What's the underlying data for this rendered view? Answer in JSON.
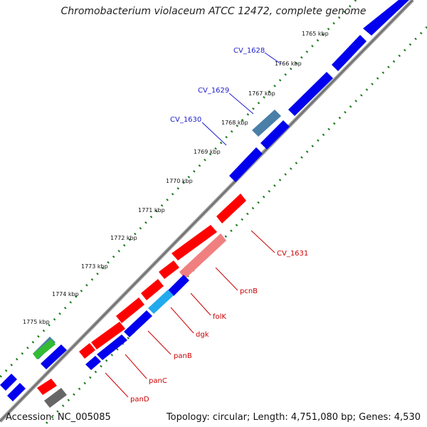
{
  "title": "Chromobacterium violaceum ATCC 12472, complete genome",
  "accession": "Accession: NC_005085",
  "topology": "Topology: circular; Length: 4,751,080 bp; Genes: 4,530",
  "colors": {
    "forward_gene": "#ff0000",
    "forward_gene_light": "#f08080",
    "reverse_gene": "#0000ee",
    "reverse_gene_alt": "#4a7fa8",
    "cyan_gene": "#22aaee",
    "green_gene": "#33bb33",
    "gray_gene": "#666666",
    "backbone": "#888888",
    "ticks": "#1a7a1a",
    "blue_label": "#2020cc",
    "red_label": "#cc0000"
  },
  "scale_labels": [
    "1765 kbp",
    "1766 kbp",
    "1767 kbp",
    "1768 kbp",
    "1769 kbp",
    "1770 kbp",
    "1771 kbp",
    "1772 kbp",
    "1773 kbp",
    "1774 kbp",
    "1775 kbp"
  ],
  "gene_labels": {
    "reverse": [
      "CV_1628",
      "CV_1629",
      "CV_1630"
    ],
    "forward": [
      "CV_1631",
      "pcnB",
      "folK",
      "dgk",
      "panB",
      "panC",
      "panD"
    ]
  }
}
